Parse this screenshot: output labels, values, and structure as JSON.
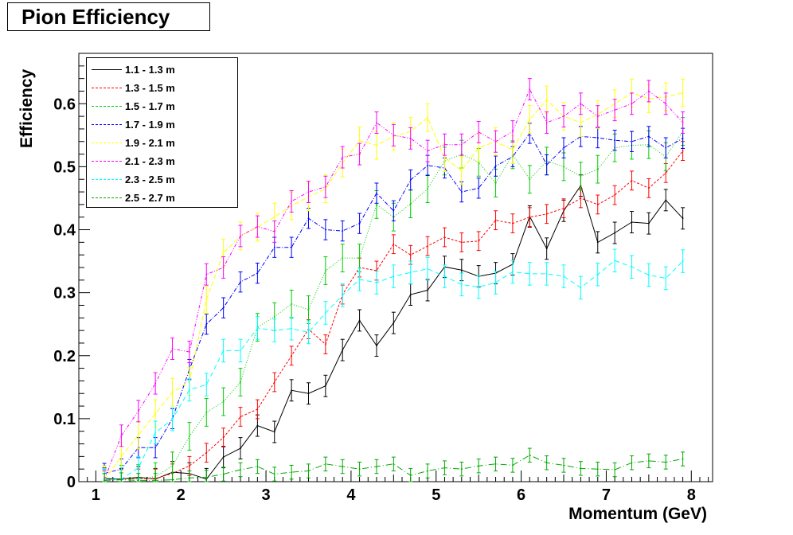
{
  "chart_data": {
    "type": "line",
    "title": "Pion Efficiency",
    "xlabel": "Momentum (GeV)",
    "ylabel": "Efficiency",
    "xlim": [
      0.8,
      8.25
    ],
    "ylim": [
      0,
      0.68
    ],
    "xticks": [
      1,
      2,
      3,
      4,
      5,
      6,
      7,
      8
    ],
    "yticks": [
      0,
      0.1,
      0.2,
      0.3,
      0.4,
      0.5,
      0.6
    ],
    "ytick_labels": [
      "0",
      "0.1",
      "0.2",
      "0.3",
      "0.4",
      "0.5",
      "0.6"
    ],
    "legend_position": "top-left",
    "grid": false,
    "x": [
      1.1,
      1.3,
      1.5,
      1.7,
      1.9,
      2.1,
      2.3,
      2.5,
      2.7,
      2.9,
      3.1,
      3.3,
      3.5,
      3.7,
      3.9,
      4.1,
      4.3,
      4.5,
      4.7,
      4.9,
      5.1,
      5.3,
      5.5,
      5.7,
      5.9,
      6.1,
      6.3,
      6.5,
      6.7,
      6.9,
      7.1,
      7.3,
      7.5,
      7.7,
      7.9
    ],
    "series": [
      {
        "name": "1.1 - 1.3 m",
        "color": "#000000",
        "dash": "",
        "err": 0.017,
        "values": [
          0.005,
          0.004,
          0.007,
          0.004,
          0.015,
          0.013,
          0.004,
          0.039,
          0.053,
          0.089,
          0.079,
          0.145,
          0.14,
          0.152,
          0.209,
          0.256,
          0.216,
          0.252,
          0.297,
          0.304,
          0.341,
          0.336,
          0.326,
          0.331,
          0.345,
          0.421,
          0.37,
          0.43,
          0.47,
          0.38,
          0.395,
          0.412,
          0.41,
          0.447,
          0.418
        ]
      },
      {
        "name": "1.3 - 1.5 m",
        "color": "#ff0000",
        "dash": "3,2",
        "err": 0.015,
        "values": [
          0.002,
          0.004,
          0.005,
          0.005,
          0.013,
          0.025,
          0.046,
          0.07,
          0.103,
          0.115,
          0.158,
          0.2,
          0.242,
          0.218,
          0.297,
          0.34,
          0.335,
          0.377,
          0.36,
          0.374,
          0.388,
          0.38,
          0.382,
          0.415,
          0.41,
          0.42,
          0.425,
          0.434,
          0.45,
          0.44,
          0.455,
          0.478,
          0.466,
          0.49,
          0.525
        ]
      },
      {
        "name": "1.5 - 1.7 m",
        "color": "#00cc00",
        "dash": "1,2",
        "err": 0.022,
        "values": [
          0.003,
          0.004,
          0.005,
          0.008,
          0.025,
          0.072,
          0.11,
          0.127,
          0.158,
          0.245,
          0.262,
          0.282,
          0.273,
          0.335,
          0.355,
          0.355,
          0.44,
          0.42,
          0.441,
          0.465,
          0.509,
          0.52,
          0.507,
          0.474,
          0.519,
          0.48,
          0.509,
          0.5,
          0.485,
          0.496,
          0.53,
          0.534,
          0.535,
          0.516,
          0.556
        ]
      },
      {
        "name": "1.7 - 1.9 m",
        "color": "#0000ff",
        "dash": "5,2,1,2",
        "err": 0.016,
        "values": [
          0.013,
          0.02,
          0.054,
          0.054,
          0.1,
          0.178,
          0.25,
          0.276,
          0.317,
          0.331,
          0.372,
          0.372,
          0.418,
          0.4,
          0.398,
          0.41,
          0.458,
          0.43,
          0.479,
          0.502,
          0.498,
          0.46,
          0.466,
          0.501,
          0.516,
          0.553,
          0.503,
          0.53,
          0.548,
          0.546,
          0.542,
          0.54,
          0.548,
          0.53,
          0.545
        ]
      },
      {
        "name": "1.9 - 2.1 m",
        "color": "#ffff00",
        "dash": "6,3",
        "err": 0.022,
        "values": [
          0.003,
          0.04,
          0.074,
          0.108,
          0.142,
          0.159,
          0.289,
          0.363,
          0.39,
          0.404,
          0.42,
          0.438,
          0.452,
          0.465,
          0.506,
          0.541,
          0.534,
          0.548,
          0.556,
          0.578,
          0.514,
          0.494,
          0.53,
          0.54,
          0.527,
          0.575,
          0.606,
          0.58,
          0.57,
          0.583,
          0.6,
          0.617,
          0.608,
          0.611,
          0.617
        ]
      },
      {
        "name": "2.1 - 2.3 m",
        "color": "#ff00ff",
        "dash": "4,2,1,2,1,2",
        "err": 0.017,
        "values": [
          0.003,
          0.073,
          0.112,
          0.156,
          0.211,
          0.206,
          0.329,
          0.34,
          0.39,
          0.405,
          0.397,
          0.445,
          0.46,
          0.468,
          0.515,
          0.52,
          0.57,
          0.55,
          0.545,
          0.525,
          0.535,
          0.535,
          0.555,
          0.54,
          0.556,
          0.623,
          0.57,
          0.58,
          0.6,
          0.58,
          0.59,
          0.6,
          0.62,
          0.6,
          0.57
        ]
      },
      {
        "name": "2.3 - 2.5 m",
        "color": "#00ffff",
        "dash": "6,4",
        "err": 0.018,
        "values": [
          0.003,
          0.004,
          0.022,
          0.078,
          0.099,
          0.146,
          0.154,
          0.208,
          0.208,
          0.244,
          0.24,
          0.243,
          0.237,
          0.268,
          0.296,
          0.321,
          0.316,
          0.326,
          0.332,
          0.338,
          0.326,
          0.313,
          0.309,
          0.316,
          0.333,
          0.33,
          0.33,
          0.326,
          0.308,
          0.329,
          0.351,
          0.341,
          0.328,
          0.323,
          0.35
        ]
      },
      {
        "name": "2.5 - 2.7 m",
        "color": "#00aa00",
        "dash": "8,3,1,3",
        "err": 0.011,
        "values": [
          0.002,
          0.003,
          0.002,
          0.002,
          0.003,
          0.006,
          0.007,
          0.012,
          0.019,
          0.024,
          0.012,
          0.015,
          0.017,
          0.028,
          0.024,
          0.02,
          0.024,
          0.028,
          0.01,
          0.017,
          0.022,
          0.02,
          0.025,
          0.028,
          0.026,
          0.042,
          0.03,
          0.026,
          0.021,
          0.02,
          0.019,
          0.03,
          0.033,
          0.031,
          0.036
        ]
      }
    ]
  }
}
